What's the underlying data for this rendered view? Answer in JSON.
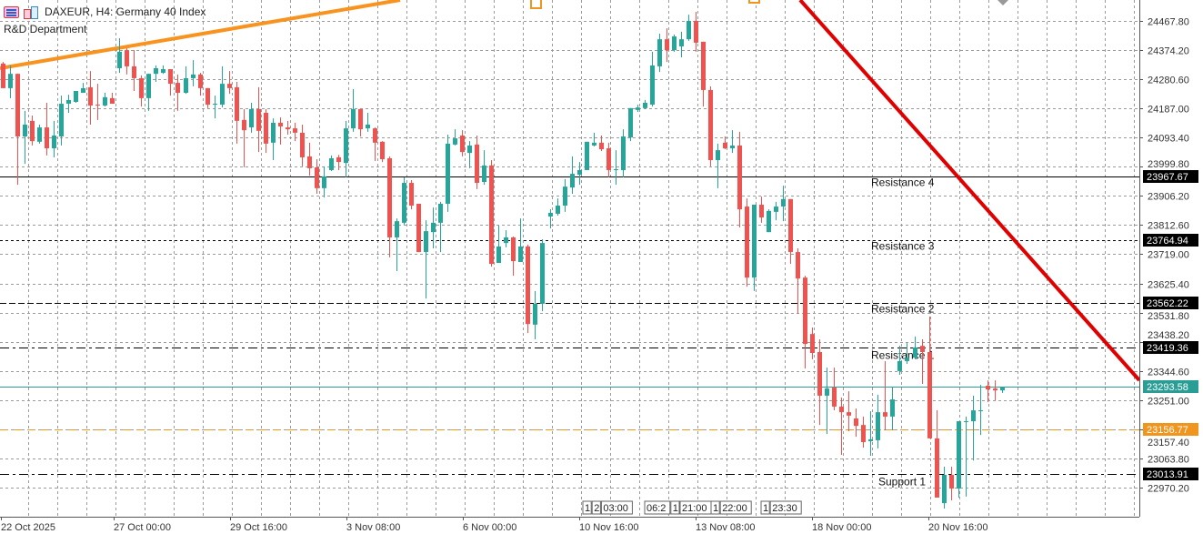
{
  "header": {
    "symbol_line": "DAXEUR, H4:  Germany 40 Index",
    "subtitle": "R&D Department",
    "icons": [
      "indicator-list-icon",
      "chart-objects-icon"
    ]
  },
  "colors": {
    "bull": "#26a69a",
    "bear": "#ef5350",
    "bid_line": "#2a9d94",
    "orange_level": "#f0961e",
    "uptrend_line": "#f7931e",
    "downtrend_line": "#e00000"
  },
  "chart_data": {
    "type": "candlestick",
    "symbol": "DAXEUR",
    "timeframe": "H4",
    "ylim": [
      22930,
      24530
    ],
    "grid": true,
    "y_ticks": [
      "24467.80",
      "24374.20",
      "24280.60",
      "24187.00",
      "24093.40",
      "23999.80",
      "23906.20",
      "23812.60",
      "23719.00",
      "23625.40",
      "23531.80",
      "23438.20",
      "23344.60",
      "23251.00",
      "23157.40",
      "23063.80",
      "22970.20"
    ],
    "x_ticks": [
      "22 Oct 2025",
      "27 Oct 00:00",
      "29 Oct 16:00",
      "3 Nov 08:00",
      "6 Nov 00:00",
      "10 Nov 16:00",
      "13 Nov 08:00",
      "18 Nov 00:00",
      "20 Nov 16:00"
    ],
    "candles_ohlc": [
      [
        24331,
        24336,
        24252,
        24252
      ],
      [
        24252,
        24325,
        24220,
        24298
      ],
      [
        24298,
        24298,
        23942,
        24097
      ],
      [
        24097,
        24179,
        24009,
        24135
      ],
      [
        24147,
        24164,
        24068,
        24082
      ],
      [
        24080,
        24135,
        24074,
        24126
      ],
      [
        24126,
        24205,
        24036,
        24059
      ],
      [
        24059,
        24147,
        24030,
        24100
      ],
      [
        24097,
        24228,
        24068,
        24202
      ],
      [
        24202,
        24231,
        24173,
        24214
      ],
      [
        24208,
        24243,
        24205,
        24243
      ],
      [
        24237,
        24269,
        24237,
        24252
      ],
      [
        24255,
        24307,
        24135,
        24196
      ],
      [
        24199,
        24266,
        24150,
        24196
      ],
      [
        24196,
        24237,
        24193,
        24223
      ],
      [
        24220,
        24237,
        24202,
        24202
      ],
      [
        24316,
        24412,
        24301,
        24369
      ],
      [
        24374,
        24380,
        24296,
        24322
      ],
      [
        24322,
        24374,
        24243,
        24284
      ],
      [
        24284,
        24293,
        24193,
        24220
      ],
      [
        24220,
        24298,
        24179,
        24298
      ],
      [
        24298,
        24325,
        24272,
        24316
      ],
      [
        24301,
        24325,
        24298,
        24313
      ],
      [
        24313,
        24313,
        24228,
        24266
      ],
      [
        24269,
        24296,
        24179,
        24237
      ],
      [
        24237,
        24322,
        24234,
        24284
      ],
      [
        24284,
        24342,
        24258,
        24296
      ],
      [
        24296,
        24301,
        24228,
        24252
      ],
      [
        24252,
        24252,
        24188,
        24199
      ],
      [
        24202,
        24228,
        24155,
        24202
      ],
      [
        24199,
        24322,
        24190,
        24266
      ],
      [
        24266,
        24307,
        24234,
        24252
      ],
      [
        24255,
        24272,
        24074,
        24147
      ],
      [
        24150,
        24185,
        23998,
        24117
      ],
      [
        24126,
        24205,
        24109,
        24185
      ],
      [
        24185,
        24255,
        24047,
        24115
      ],
      [
        24173,
        24185,
        24044,
        24074
      ],
      [
        24077,
        24155,
        24021,
        24141
      ],
      [
        24141,
        24158,
        24071,
        24129
      ],
      [
        24126,
        24147,
        24103,
        24120
      ],
      [
        24123,
        24141,
        24082,
        24109
      ],
      [
        24109,
        24135,
        24001,
        24030
      ],
      [
        24033,
        24077,
        23971,
        23995
      ],
      [
        23998,
        24024,
        23913,
        23931
      ],
      [
        23931,
        24001,
        23901,
        23969
      ],
      [
        23989,
        24036,
        23986,
        24027
      ],
      [
        24030,
        24038,
        23989,
        24015
      ],
      [
        24012,
        24147,
        23966,
        24123
      ],
      [
        24123,
        24249,
        24112,
        24185
      ],
      [
        24185,
        24185,
        24097,
        24120
      ],
      [
        24123,
        24173,
        24112,
        24135
      ],
      [
        24123,
        24126,
        24018,
        24077
      ],
      [
        24080,
        24082,
        24015,
        24024
      ],
      [
        24027,
        24033,
        23709,
        23773
      ],
      [
        23773,
        23834,
        23665,
        23825
      ],
      [
        23820,
        23966,
        23814,
        23948
      ],
      [
        23948,
        23957,
        23863,
        23875
      ],
      [
        23881,
        23881,
        23726,
        23726
      ],
      [
        23726,
        23828,
        23577,
        23793
      ],
      [
        23790,
        23869,
        23738,
        23820
      ],
      [
        23820,
        23887,
        23726,
        23881
      ],
      [
        23881,
        24103,
        23855,
        24074
      ],
      [
        24071,
        24120,
        24068,
        24091
      ],
      [
        24100,
        24117,
        24033,
        24047
      ],
      [
        24044,
        24082,
        23995,
        24068
      ],
      [
        24071,
        24100,
        23928,
        23948
      ],
      [
        23951,
        24053,
        23942,
        24004
      ],
      [
        24004,
        24021,
        23679,
        23688
      ],
      [
        23691,
        23811,
        23691,
        23744
      ],
      [
        23755,
        23796,
        23741,
        23773
      ],
      [
        23773,
        23776,
        23650,
        23697
      ],
      [
        23694,
        23834,
        23694,
        23744
      ],
      [
        23744,
        23750,
        23466,
        23495
      ],
      [
        23493,
        23601,
        23446,
        23560
      ],
      [
        23560,
        23767,
        23536,
        23755
      ],
      [
        23840,
        23863,
        23802,
        23852
      ],
      [
        23849,
        23898,
        23843,
        23875
      ],
      [
        23875,
        23960,
        23855,
        23936
      ],
      [
        23933,
        24033,
        23913,
        23977
      ],
      [
        23974,
        24015,
        23942,
        23989
      ],
      [
        23989,
        24080,
        23989,
        24080
      ],
      [
        24068,
        24109,
        24065,
        24077
      ],
      [
        24077,
        24100,
        24050,
        24056
      ],
      [
        24059,
        24077,
        23966,
        23989
      ],
      [
        23989,
        24053,
        23942,
        23992
      ],
      [
        23989,
        24120,
        23966,
        24097
      ],
      [
        24094,
        24188,
        24082,
        24188
      ],
      [
        24182,
        24199,
        24176,
        24190
      ],
      [
        24188,
        24214,
        24185,
        24205
      ],
      [
        24199,
        24369,
        24193,
        24325
      ],
      [
        24322,
        24427,
        24304,
        24409
      ],
      [
        24409,
        24444,
        24336,
        24374
      ],
      [
        24374,
        24424,
        24369,
        24418
      ],
      [
        24386,
        24433,
        24351,
        24409
      ],
      [
        24409,
        24488,
        24404,
        24468
      ],
      [
        24468,
        24497,
        24369,
        24398
      ],
      [
        24401,
        24401,
        24193,
        24246
      ],
      [
        24246,
        24258,
        24001,
        24021
      ],
      [
        24021,
        24074,
        23931,
        24053
      ],
      [
        24077,
        24097,
        24056,
        24059
      ],
      [
        24059,
        24117,
        24044,
        24068
      ],
      [
        24068,
        24112,
        23805,
        23863
      ],
      [
        23872,
        23898,
        23615,
        23644
      ],
      [
        23644,
        23878,
        23601,
        23878
      ],
      [
        23878,
        23904,
        23820,
        23837
      ],
      [
        23790,
        23863,
        23790,
        23858
      ],
      [
        23855,
        23887,
        23828,
        23872
      ],
      [
        23872,
        23939,
        23825,
        23896
      ],
      [
        23896,
        23896,
        23688,
        23726
      ],
      [
        23726,
        23738,
        23528,
        23641
      ],
      [
        23644,
        23650,
        23352,
        23431
      ],
      [
        23463,
        23484,
        23382,
        23402
      ],
      [
        23405,
        23446,
        23171,
        23265
      ],
      [
        23265,
        23355,
        23142,
        23288
      ],
      [
        23291,
        23355,
        23218,
        23230
      ],
      [
        23230,
        23259,
        23075,
        23212
      ],
      [
        23212,
        23279,
        23151,
        23201
      ],
      [
        23192,
        23224,
        23133,
        23168
      ],
      [
        23171,
        23198,
        23098,
        23116
      ],
      [
        23119,
        23215,
        23072,
        23125
      ],
      [
        23122,
        23268,
        23096,
        23212
      ],
      [
        23212,
        23376,
        23154,
        23198
      ],
      [
        23198,
        23294,
        23154,
        23253
      ],
      [
        23344,
        23425,
        23332,
        23376
      ],
      [
        23376,
        23434,
        23367,
        23387
      ],
      [
        23387,
        23455,
        23382,
        23420
      ],
      [
        23425,
        23446,
        23303,
        23405
      ],
      [
        23405,
        23519,
        23128,
        23128
      ],
      [
        23128,
        23218,
        22938,
        22938
      ],
      [
        22920,
        23037,
        22903,
        23011
      ],
      [
        23011,
        23037,
        22929,
        22967
      ],
      [
        22967,
        23183,
        22938,
        23183
      ],
      [
        23180,
        23198,
        22941,
        23183
      ],
      [
        23183,
        23265,
        23057,
        23218
      ],
      [
        23215,
        23300,
        23139,
        23218
      ],
      [
        23297,
        23314,
        23244,
        23285
      ],
      [
        23288,
        23314,
        23250,
        23282
      ],
      [
        23282,
        23294,
        23274,
        23294
      ]
    ],
    "levels": [
      {
        "name": "Resistance 4",
        "price": 23967.67,
        "price_label": "23967.67",
        "style": "solid",
        "color": "#000000",
        "label_bg": "#000000"
      },
      {
        "name": "Resistance 3",
        "price": 23764.94,
        "price_label": "23764.94",
        "style": "dot",
        "color": "#000000",
        "label_bg": "#000000"
      },
      {
        "name": "Resistance 2",
        "price": 23562.22,
        "price_label": "23562.22",
        "style": "dash",
        "color": "#000000",
        "label_bg": "#000000"
      },
      {
        "name": "Resistance 1",
        "price": 23419.36,
        "price_label": "23419.36",
        "style": "dashdot",
        "color": "#000000",
        "label_bg": "#000000"
      },
      {
        "name": "",
        "price": 23293.58,
        "price_label": "23293.58",
        "style": "solid",
        "color": "#2a9d94",
        "label_bg": "#2a9d94"
      },
      {
        "name": "",
        "price": 23156.77,
        "price_label": "23156.77",
        "style": "longdash",
        "color": "#f0961e",
        "label_bg": "#f0961e"
      },
      {
        "name": "Support 1",
        "price": 23013.91,
        "price_label": "23013.91",
        "style": "dashdot",
        "color": "#000000",
        "label_bg": "#000000"
      }
    ],
    "time_markers": [
      {
        "labels": [
          "1",
          "2",
          "03:00"
        ]
      },
      {
        "labels": [
          "06:2",
          "1",
          "21:00"
        ]
      },
      {
        "labels": [
          "1",
          "22:00"
        ]
      },
      {
        "labels": [
          "1",
          "23:30"
        ]
      }
    ]
  }
}
